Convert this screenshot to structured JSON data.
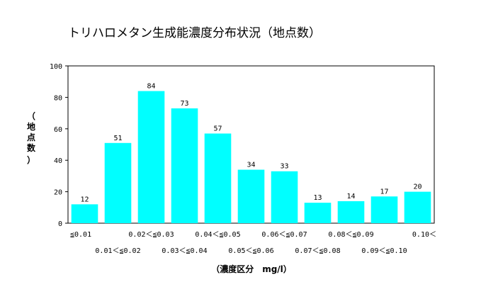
{
  "chart_data": {
    "type": "bar",
    "title": "トリハロメタン生成能濃度分布状況（地点数）",
    "xlabel": "（濃度区分　mg/l）",
    "ylabel": [
      "（",
      "地",
      "点",
      "数",
      "）"
    ],
    "ylim": [
      0,
      100
    ],
    "yticks": [
      0,
      20,
      40,
      60,
      80,
      100
    ],
    "bar_color": "#00FFFF",
    "categories": [
      "≦0.01",
      "0.01＜≦0.02",
      "0.02＜≦0.03",
      "0.03＜≦0.04",
      "0.04＜≦0.05",
      "0.05＜≦0.06",
      "0.06＜≦0.07",
      "0.07＜≦0.08",
      "0.08＜≦0.09",
      "0.09＜≦0.10",
      "0.10＜"
    ],
    "values": [
      12,
      51,
      84,
      73,
      57,
      34,
      33,
      13,
      14,
      17,
      20
    ]
  }
}
